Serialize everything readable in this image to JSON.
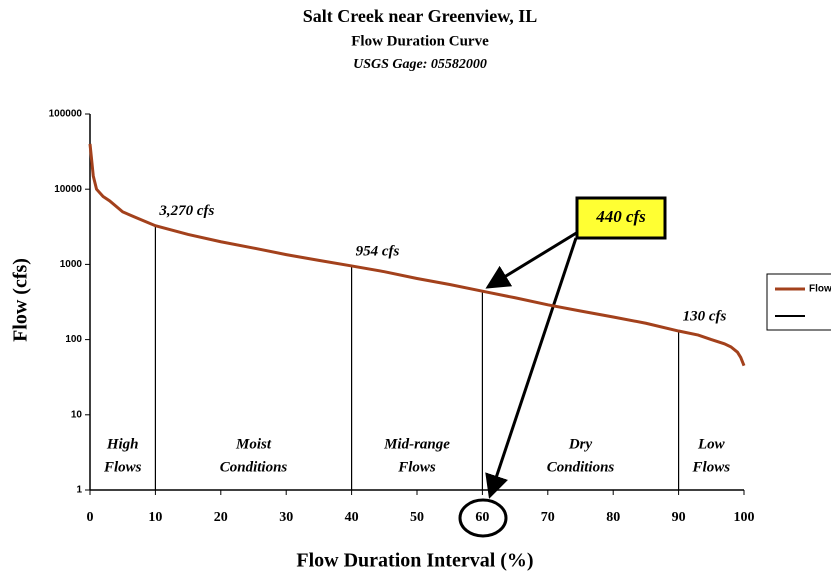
{
  "chart_data": {
    "type": "line",
    "title": "Salt Creek near Greenview, IL",
    "subtitle": "Flow Duration Curve",
    "gage": "USGS Gage:  05582000",
    "x_label": "Flow Duration Interval (%)",
    "y_label": "Flow (cfs)",
    "log_y": true,
    "xlim": [
      0,
      100
    ],
    "ylim": [
      1,
      100000
    ],
    "xticks": [
      0,
      10,
      20,
      30,
      40,
      50,
      60,
      70,
      80,
      90,
      100
    ],
    "yticks": [
      1,
      10,
      100,
      1000,
      10000,
      100000
    ],
    "x": [
      0,
      0.5,
      1,
      2,
      3,
      5,
      7,
      10,
      15,
      20,
      25,
      30,
      35,
      40,
      45,
      50,
      55,
      60,
      65,
      70,
      75,
      80,
      85,
      90,
      93,
      95,
      97,
      98,
      99,
      99.5,
      100
    ],
    "series": [
      {
        "name": "Flow",
        "color": "#a3411c",
        "values": [
          40000,
          15000,
          10000,
          8000,
          7000,
          5000,
          4200,
          3270,
          2500,
          2000,
          1650,
          1350,
          1130,
          954,
          800,
          650,
          540,
          440,
          360,
          290,
          240,
          200,
          165,
          130,
          115,
          100,
          88,
          80,
          68,
          58,
          45
        ]
      }
    ],
    "legend_position": "right",
    "annotations": [
      {
        "text": "3,270 cfs",
        "x": 10,
        "y": 3270
      },
      {
        "text": "954 cfs",
        "x": 40,
        "y": 954
      },
      {
        "text": "440 cfs",
        "x": 60,
        "y": 440
      },
      {
        "text": "130 cfs",
        "x": 90,
        "y": 130
      }
    ],
    "zones": [
      {
        "lines": [
          "High",
          "Flows"
        ],
        "x": 5
      },
      {
        "lines": [
          "Moist",
          "Conditions"
        ],
        "x": 25
      },
      {
        "lines": [
          "Mid-range",
          "Flows"
        ],
        "x": 50
      },
      {
        "lines": [
          "Dry",
          "Conditions"
        ],
        "x": 75
      },
      {
        "lines": [
          "Low",
          "Flows"
        ],
        "x": 95
      }
    ]
  }
}
